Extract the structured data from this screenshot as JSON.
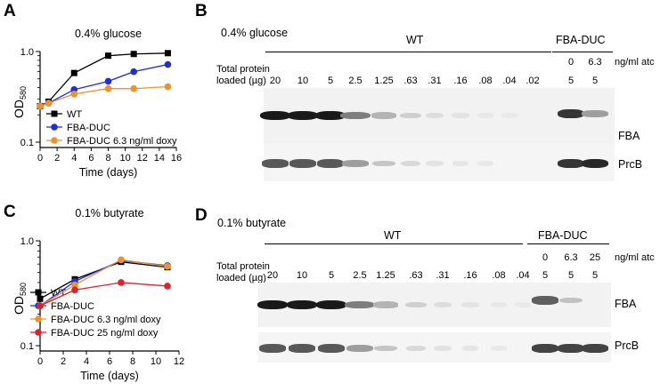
{
  "panels": {
    "a": "A",
    "b": "B",
    "c": "C",
    "d": "D"
  },
  "chart_data": [
    {
      "id": "A",
      "type": "line",
      "title": "0.4% glucose",
      "xlabel": "Time (days)",
      "ylabel": "OD",
      "ylabel_sub": "580",
      "yscale": "log",
      "xlim": [
        0,
        16
      ],
      "ylim": [
        0.1,
        1.0
      ],
      "xticks": [
        "0",
        "2",
        "4",
        "6",
        "8",
        "10",
        "12",
        "14",
        "16"
      ],
      "yticks": [
        "0.1",
        "1.0"
      ],
      "legend_position": "bottom-right",
      "series": [
        {
          "name": "WT",
          "color": "#000000",
          "marker": "square",
          "x": [
            0,
            1,
            4,
            8,
            11,
            15
          ],
          "y": [
            0.25,
            0.28,
            0.58,
            0.9,
            0.94,
            0.96
          ]
        },
        {
          "name": "FBA-DUC",
          "color": "#1f2fd6",
          "marker": "circle",
          "x": [
            0,
            1,
            4,
            8,
            11,
            15
          ],
          "y": [
            0.25,
            0.27,
            0.38,
            0.47,
            0.6,
            0.72
          ]
        },
        {
          "name": "FBA-DUC 6.3 ng/ml doxy",
          "color": "#f0922b",
          "marker": "circle",
          "x": [
            0,
            1,
            4,
            8,
            11,
            15
          ],
          "y": [
            0.25,
            0.27,
            0.34,
            0.39,
            0.39,
            0.41
          ]
        }
      ]
    },
    {
      "id": "C",
      "type": "line",
      "title": "0.1% butyrate",
      "xlabel": "Time (days)",
      "ylabel": "OD",
      "ylabel_sub": "580",
      "yscale": "log",
      "xlim": [
        0,
        12
      ],
      "ylim": [
        0.1,
        1.0
      ],
      "xticks": [
        "0",
        "2",
        "4",
        "6",
        "8",
        "10",
        "12"
      ],
      "yticks": [
        "0.1",
        "1.0"
      ],
      "legend_position": "bottom-right",
      "series": [
        {
          "name": "WT",
          "color": "#000000",
          "marker": "square",
          "x": [
            0,
            3,
            7,
            11
          ],
          "y": [
            0.28,
            0.43,
            0.63,
            0.56
          ]
        },
        {
          "name": "FBA-DUC",
          "color": "#1f2fd6",
          "marker": "circle",
          "x": [
            0,
            3,
            7,
            11
          ],
          "y": [
            0.24,
            0.41,
            0.65,
            0.58
          ]
        },
        {
          "name": "FBA-DUC 6.3 ng/ml doxy",
          "color": "#f0922b",
          "marker": "circle",
          "x": [
            0,
            3,
            7,
            11
          ],
          "y": [
            0.24,
            0.38,
            0.66,
            0.57
          ]
        },
        {
          "name": "FBA-DUC 25 ng/ml doxy",
          "color": "#e0202a",
          "marker": "circle",
          "x": [
            0,
            3,
            7,
            11
          ],
          "y": [
            0.24,
            0.34,
            0.4,
            0.37
          ]
        }
      ]
    }
  ],
  "blot_b": {
    "title": "0.4% glucose",
    "wt_label": "WT",
    "duc_label": "FBA-DUC",
    "atc_label": "ng/ml atc",
    "total_protein_line1": "Total protein",
    "total_protein_line2": "loaded (µg)",
    "wt_lanes": [
      "20",
      "10",
      "5",
      "2.5",
      "1.25",
      ".63",
      ".31",
      ".16",
      ".08",
      ".04",
      ".02"
    ],
    "duc_atc": [
      "0",
      "6.3"
    ],
    "duc_lanes": [
      "5",
      "5"
    ],
    "band1": "FBA",
    "band2": "PrcB"
  },
  "blot_d": {
    "title": "0.1% butyrate",
    "wt_label": "WT",
    "duc_label": "FBA-DUC",
    "atc_label": "ng/ml atc",
    "total_protein_line1": "Total protein",
    "total_protein_line2": "loaded (µg)",
    "wt_lanes": [
      "20",
      "10",
      "5",
      "2.5",
      "1.25",
      ".63",
      ".31",
      ".16",
      ".08",
      ".04"
    ],
    "duc_atc": [
      "0",
      "6.3",
      "25"
    ],
    "duc_lanes": [
      "5",
      "5",
      "5"
    ],
    "band1": "FBA",
    "band2": "PrcB"
  },
  "colors": {
    "wt": "#000000",
    "duc": "#1f2fd6",
    "doxy63": "#f0922b",
    "doxy25": "#e0202a"
  }
}
